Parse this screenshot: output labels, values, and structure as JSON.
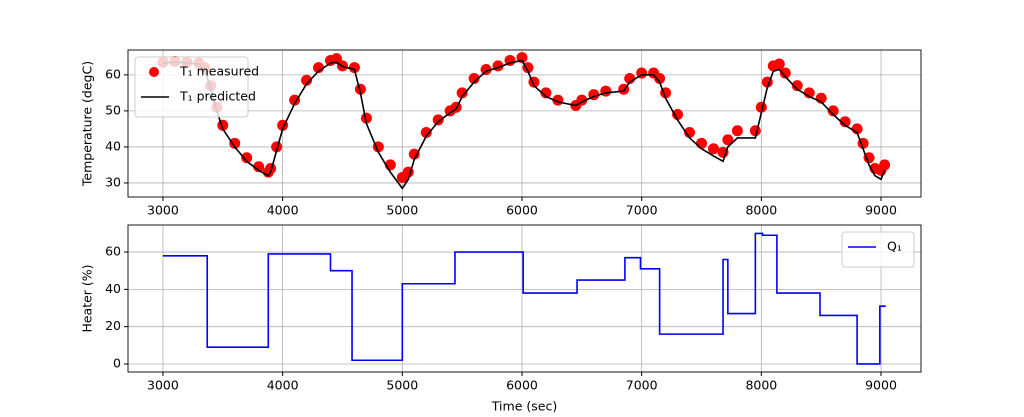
{
  "chart_data": [
    {
      "type": "line",
      "ylabel": "Temperature (degC)",
      "xlim": [
        2708,
        9334
      ],
      "ylim": [
        26.1,
        66.9
      ],
      "xticks": [
        3000,
        4000,
        5000,
        6000,
        7000,
        8000,
        9000
      ],
      "yticks": [
        30,
        40,
        50,
        60
      ],
      "grid": true,
      "legend": "upper left",
      "x": [
        3000,
        3100,
        3200,
        3300,
        3350,
        3400,
        3450,
        3500,
        3600,
        3700,
        3800,
        3880,
        3900,
        3950,
        4000,
        4100,
        4200,
        4300,
        4400,
        4450,
        4500,
        4600,
        4650,
        4700,
        4800,
        4900,
        5000,
        5050,
        5100,
        5200,
        5300,
        5400,
        5450,
        5500,
        5600,
        5700,
        5800,
        5900,
        6000,
        6050,
        6100,
        6200,
        6300,
        6450,
        6500,
        6600,
        6700,
        6850,
        6900,
        7000,
        7100,
        7150,
        7200,
        7300,
        7400,
        7500,
        7600,
        7680,
        7720,
        7800,
        7950,
        8000,
        8050,
        8100,
        8150,
        8200,
        8300,
        8400,
        8500,
        8600,
        8700,
        8800,
        8850,
        8900,
        8950,
        9000,
        9030
      ],
      "series": [
        {
          "name": "T₁ measured",
          "mode": "markers",
          "color": "#ff0000",
          "values": [
            63.5,
            63.7,
            63.5,
            63.3,
            62,
            57,
            51,
            46,
            41,
            37,
            34.5,
            33,
            34,
            40,
            46,
            53,
            58.5,
            62,
            64,
            64.5,
            62.5,
            62,
            56,
            48,
            40,
            35,
            31.5,
            33,
            38,
            44,
            47.5,
            50,
            51,
            55,
            59,
            61.5,
            62.5,
            64,
            64.8,
            62,
            58,
            55,
            53,
            51.5,
            53,
            54.5,
            55.5,
            56,
            59,
            60.5,
            60.5,
            59,
            55,
            49,
            44,
            41,
            39.5,
            38.5,
            42,
            44.5,
            44.5,
            51,
            58,
            62.5,
            63,
            60.5,
            57,
            55,
            53.5,
            50,
            47,
            45,
            41,
            37,
            34,
            33.5,
            35
          ]
        },
        {
          "name": "T₁ predicted",
          "mode": "lines",
          "color": "#000000",
          "values": [
            63.3,
            63.5,
            63.3,
            63,
            61.5,
            56,
            50,
            45,
            40,
            36,
            33.5,
            32,
            33,
            39,
            45,
            52,
            57.5,
            61,
            63.3,
            63.5,
            62.3,
            61.5,
            55,
            46.5,
            38.5,
            33,
            28.5,
            31,
            36.5,
            43,
            47,
            49.5,
            50.5,
            54,
            58,
            61,
            62,
            63.3,
            64,
            61,
            57,
            54,
            52.5,
            51.5,
            52.5,
            54,
            55,
            55.5,
            58,
            60,
            60,
            58,
            53.5,
            47.5,
            42.5,
            39.5,
            37.5,
            36,
            40,
            42.5,
            42.5,
            49.5,
            56.5,
            61,
            61.5,
            59.5,
            56,
            54,
            52.5,
            49,
            46,
            44,
            39.5,
            35,
            32,
            31,
            33.5
          ]
        }
      ]
    },
    {
      "type": "line",
      "xlabel": "Time (sec)",
      "ylabel": "Heater (%)",
      "xlim": [
        2708,
        9334
      ],
      "ylim": [
        -4.3,
        74.5
      ],
      "xticks": [
        3000,
        4000,
        5000,
        6000,
        7000,
        8000,
        9000
      ],
      "yticks": [
        0,
        20,
        40,
        60
      ],
      "grid": true,
      "legend": "upper right",
      "x": [
        3000,
        3370,
        3370,
        3880,
        3880,
        4400,
        4400,
        4580,
        4580,
        5000,
        5000,
        5440,
        5440,
        6010,
        6010,
        6460,
        6460,
        6860,
        6860,
        6990,
        6990,
        7150,
        7150,
        7680,
        7680,
        7720,
        7720,
        7950,
        7950,
        8010,
        8010,
        8130,
        8130,
        8490,
        8490,
        8800,
        8800,
        8990,
        8990,
        9040
      ],
      "series": [
        {
          "name": "Q₁",
          "mode": "lines",
          "color": "#0000ff",
          "values": [
            58,
            58,
            9,
            9,
            59,
            59,
            50,
            50,
            2,
            2,
            43,
            43,
            60,
            60,
            38,
            38,
            45,
            45,
            57,
            57,
            51,
            51,
            16,
            16,
            56,
            56,
            27,
            27,
            70,
            70,
            69,
            69,
            38,
            38,
            26,
            26,
            0,
            0,
            31,
            31
          ]
        }
      ]
    }
  ]
}
